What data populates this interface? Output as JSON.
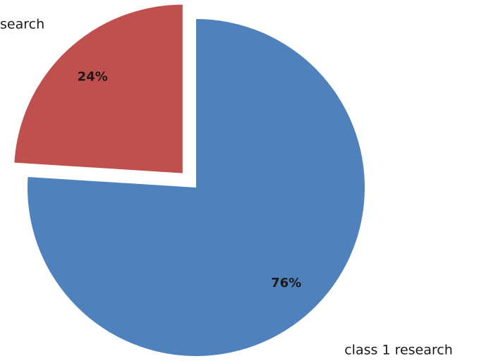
{
  "chart_data": {
    "type": "pie",
    "categories": [
      "class 1 research",
      "search"
    ],
    "values": [
      76,
      24
    ],
    "value_labels": [
      "76%",
      "24%"
    ],
    "colors": [
      "#4f81bd",
      "#c0504d"
    ],
    "explode": [
      false,
      true
    ]
  }
}
